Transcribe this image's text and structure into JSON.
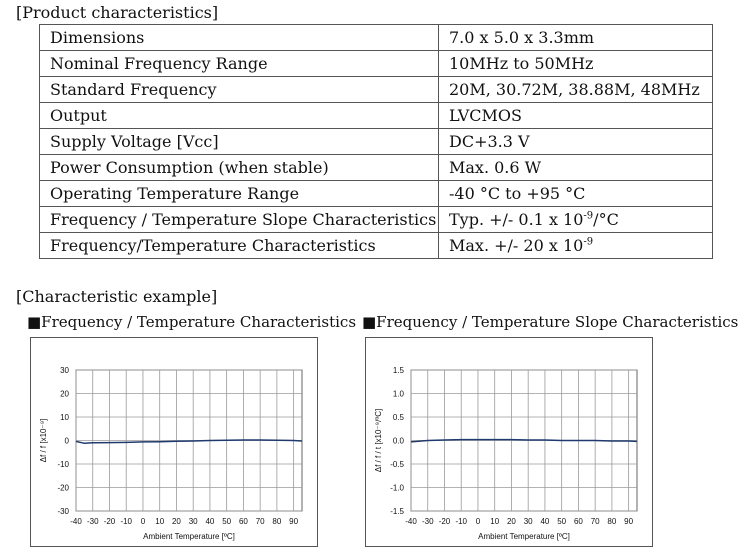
{
  "product_title": "[Product characteristics]",
  "spec_rows": [
    {
      "key": "Dimensions",
      "value": "7.0 x 5.0 x 3.3mm"
    },
    {
      "key": "Nominal Frequency Range",
      "value": "10MHz to 50MHz"
    },
    {
      "key": "Standard Frequency",
      "value": "20M, 30.72M, 38.88M, 48MHz"
    },
    {
      "key": "Output",
      "value": "LVCMOS"
    },
    {
      "key": "Supply Voltage [Vcc]",
      "value": "DC+3.3 V"
    },
    {
      "key": "Power Consumption (when stable)",
      "value": "Max. 0.6 W"
    },
    {
      "key": "Operating Temperature Range",
      "value": "-40 °C to +95 °C"
    },
    {
      "key": "Frequency / Temperature Slope Characteristics",
      "value": "Typ. +/- 0.1 x 10",
      "value_sup": "-9",
      "value_suffix": "/°C"
    },
    {
      "key": "Frequency/Temperature Characteristics",
      "value": "Max. +/- 20 x 10",
      "value_sup": "-9",
      "value_suffix": ""
    }
  ],
  "example_title": "[Characteristic example]",
  "chart_data": [
    {
      "type": "line",
      "title": "■Frequency / Temperature Characteristics",
      "xlabel": "Ambient Temperature [ºC]",
      "ylabel": "Δf / f [x10⁻⁹]",
      "xlim": [
        -40,
        95
      ],
      "ylim": [
        -30,
        30
      ],
      "xticks": [
        -40,
        -30,
        -20,
        -10,
        0,
        10,
        20,
        30,
        40,
        50,
        60,
        70,
        80,
        90
      ],
      "yticks": [
        30,
        20,
        10,
        0,
        -10,
        -20,
        -30
      ],
      "ytick_labels": [
        "30",
        "20",
        "10",
        "0",
        "-10",
        "-20",
        "-30"
      ],
      "grid": true,
      "series": [
        {
          "color": "#1f3a6e",
          "x": [
            -40,
            -35,
            -30,
            -20,
            -10,
            0,
            10,
            20,
            30,
            40,
            50,
            60,
            70,
            80,
            90,
            95
          ],
          "y": [
            -0.4,
            -1.2,
            -1.0,
            -0.9,
            -0.8,
            -0.6,
            -0.5,
            -0.3,
            -0.2,
            0.0,
            0.1,
            0.2,
            0.2,
            0.1,
            0.0,
            -0.2
          ]
        }
      ]
    },
    {
      "type": "line",
      "title": "■Frequency / Temperature Slope Characteristics",
      "xlabel": "Ambient Temperature [ºC]",
      "ylabel": "Δf / f / t [x10⁻⁹/ºC]",
      "xlim": [
        -40,
        95
      ],
      "ylim": [
        -1.5,
        1.5
      ],
      "xticks": [
        -40,
        -30,
        -20,
        -10,
        0,
        10,
        20,
        30,
        40,
        50,
        60,
        70,
        80,
        90
      ],
      "yticks": [
        1.5,
        1.0,
        0.5,
        0.0,
        -0.5,
        -1.0,
        -1.5
      ],
      "ytick_labels": [
        "1.5",
        "1.0",
        "0.5",
        "0.0",
        "-0.5",
        "-1.0",
        "-1.5"
      ],
      "grid": true,
      "series": [
        {
          "color": "#1f3a6e",
          "x": [
            -40,
            -30,
            -20,
            -10,
            0,
            10,
            20,
            30,
            40,
            50,
            60,
            70,
            80,
            90,
            95
          ],
          "y": [
            -0.03,
            0.0,
            0.01,
            0.02,
            0.02,
            0.02,
            0.02,
            0.01,
            0.01,
            0.0,
            0.0,
            0.0,
            -0.01,
            -0.01,
            -0.02
          ]
        }
      ]
    }
  ]
}
